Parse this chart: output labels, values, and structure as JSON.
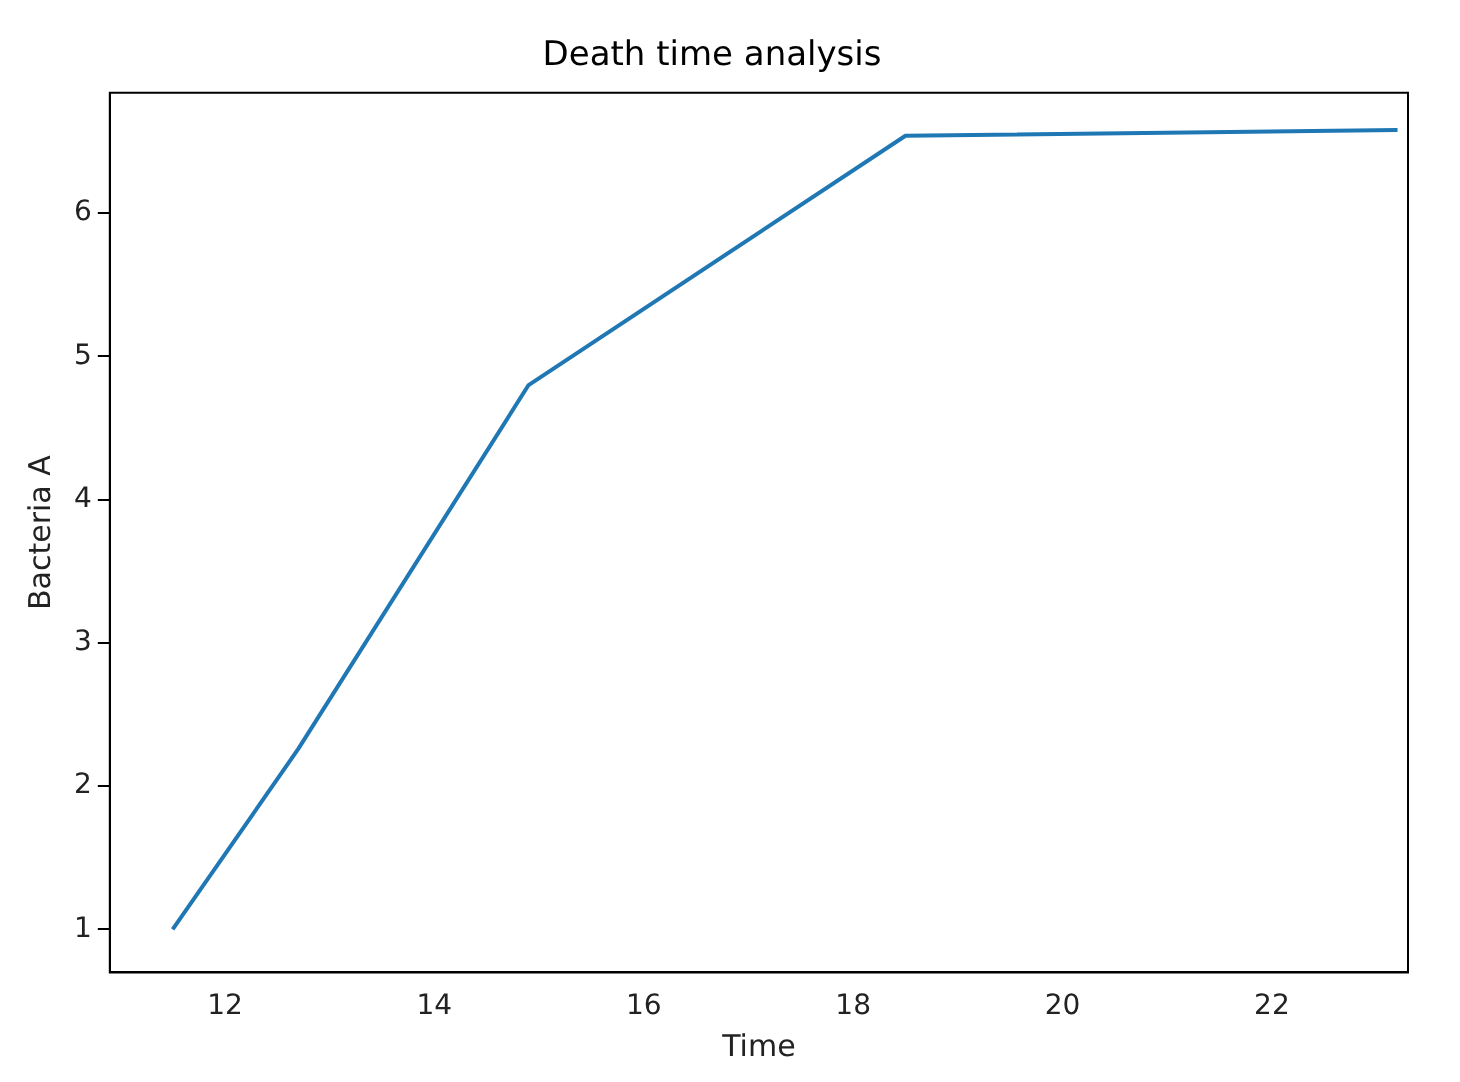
{
  "chart_data": {
    "type": "line",
    "title": "Death time analysis",
    "xlabel": "Time",
    "ylabel": "Bacteria A",
    "x": [
      11.5,
      12.7,
      14.9,
      18.5,
      23.2
    ],
    "series": [
      {
        "color": "#1f77b4",
        "values": [
          1,
          2.26,
          4.8,
          6.54,
          6.58
        ]
      }
    ],
    "xlim": [
      10.9,
      23.3
    ],
    "xticks": [
      12,
      14,
      16,
      18,
      20,
      22
    ],
    "ylim": [
      0.7,
      6.84
    ],
    "yticks": [
      1,
      2,
      3,
      4,
      5,
      6
    ],
    "grid": false,
    "legend": false
  }
}
